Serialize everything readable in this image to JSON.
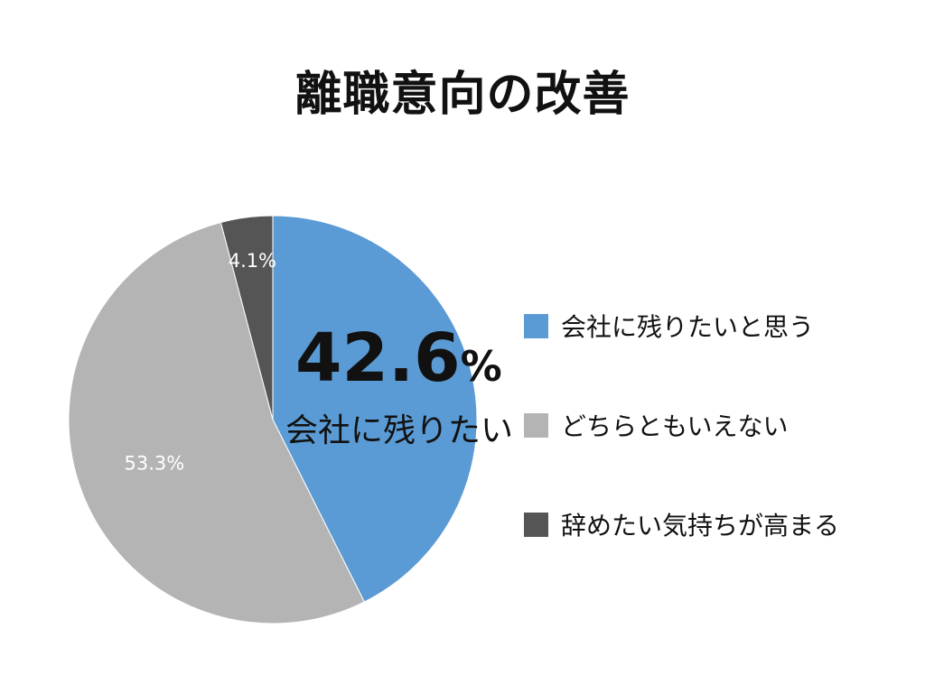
{
  "title": "離職意向の改善",
  "highlight": {
    "value": "42.6",
    "unit": "%",
    "caption": "会社に残りたい"
  },
  "chart_data": {
    "type": "pie",
    "title": "離職意向の改善",
    "slices": [
      {
        "label": "会社に残りたいと思う",
        "value": 42.6,
        "value_label": "",
        "color": "#5b9bd5"
      },
      {
        "label": "どちらともいえない",
        "value": 53.3,
        "value_label": "53.3%",
        "color": "#b4b4b4"
      },
      {
        "label": "辞めたい気持ちが高まる",
        "value": 4.1,
        "value_label": "4.1%",
        "color": "#555555"
      }
    ],
    "start": "12 o'clock, clockwise",
    "legend_position": "right"
  }
}
